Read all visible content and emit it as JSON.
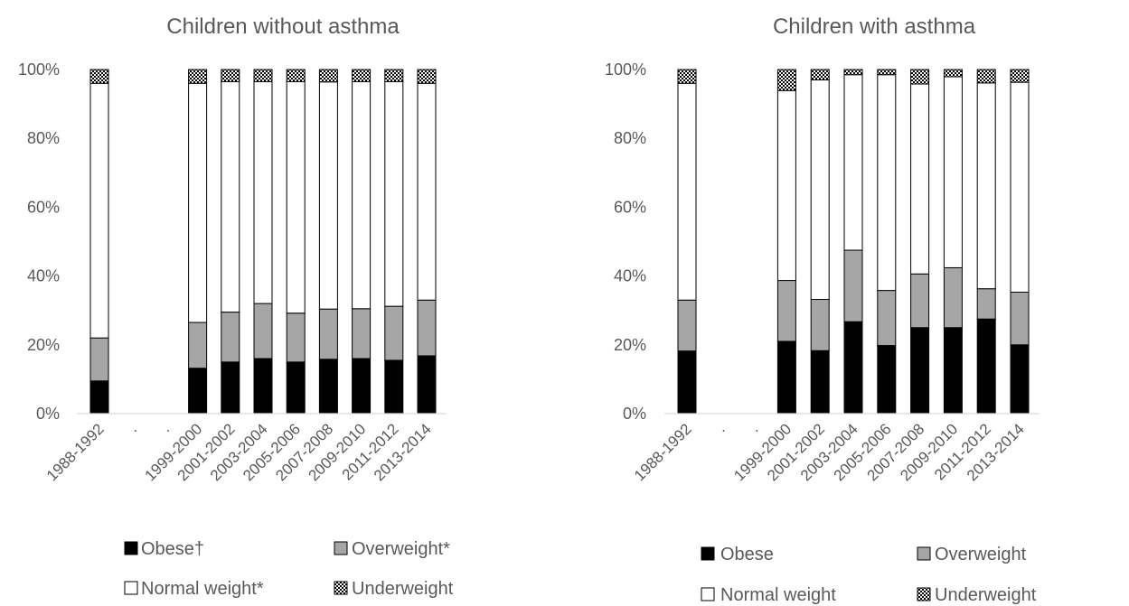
{
  "colors": {
    "obese": "#000000",
    "overweight": "#a6a6a6",
    "normal": "#ffffff",
    "underweight_pattern": "checker",
    "outline": "#000000",
    "axis_line": "#d9d9d9",
    "text": "#595959"
  },
  "chart_data": [
    {
      "type": "bar",
      "stacked": true,
      "title": "Children without asthma",
      "categories": [
        "1988-1992",
        ".",
        ".",
        "1999-2000",
        "2001-2002",
        "2003-2004",
        "2005-2006",
        "2007-2008",
        "2009-2010",
        "2011-2012",
        "2013-2014"
      ],
      "ylim": [
        0,
        100
      ],
      "yticks": [
        "0%",
        "20%",
        "40%",
        "60%",
        "80%",
        "100%"
      ],
      "grid": false,
      "legend_position": "bottom",
      "series": [
        {
          "name": "Obese†",
          "values": [
            9.5,
            null,
            null,
            13.2,
            15.0,
            16.0,
            15.0,
            15.8,
            16.0,
            15.5,
            16.8
          ]
        },
        {
          "name": "Overweight*",
          "values": [
            12.5,
            null,
            null,
            13.3,
            14.5,
            16.0,
            14.2,
            14.6,
            14.5,
            15.7,
            16.2
          ]
        },
        {
          "name": "Normal weight*",
          "values": [
            74.0,
            null,
            null,
            69.5,
            67.0,
            64.5,
            67.3,
            66.0,
            66.0,
            65.3,
            63.0
          ]
        },
        {
          "name": "Underweight",
          "values": [
            4.0,
            null,
            null,
            4.0,
            3.5,
            3.5,
            3.5,
            3.6,
            3.5,
            3.5,
            4.0
          ]
        }
      ]
    },
    {
      "type": "bar",
      "stacked": true,
      "title": "Children with asthma",
      "categories": [
        "1988-1992",
        ".",
        ".",
        "1999-2000",
        "2001-2002",
        "2003-2004",
        "2005-2006",
        "2007-2008",
        "2009-2010",
        "2011-2012",
        "2013-2014"
      ],
      "ylim": [
        0,
        100
      ],
      "yticks": [
        "0%",
        "20%",
        "40%",
        "60%",
        "80%",
        "100%"
      ],
      "grid": false,
      "legend_position": "bottom",
      "series": [
        {
          "name": "Obese",
          "values": [
            18.2,
            null,
            null,
            21.0,
            18.3,
            26.7,
            19.8,
            25.0,
            25.0,
            27.5,
            20.0
          ]
        },
        {
          "name": "Overweight",
          "values": [
            14.8,
            null,
            null,
            17.7,
            14.9,
            20.8,
            16.0,
            15.6,
            17.4,
            8.8,
            15.3
          ]
        },
        {
          "name": "Normal weight",
          "values": [
            63.0,
            null,
            null,
            55.2,
            63.8,
            51.0,
            62.7,
            55.2,
            55.5,
            59.8,
            61.0
          ]
        },
        {
          "name": "Underweight",
          "values": [
            4.0,
            null,
            null,
            6.1,
            3.0,
            1.5,
            1.5,
            4.2,
            2.1,
            3.9,
            3.7
          ]
        }
      ]
    }
  ]
}
